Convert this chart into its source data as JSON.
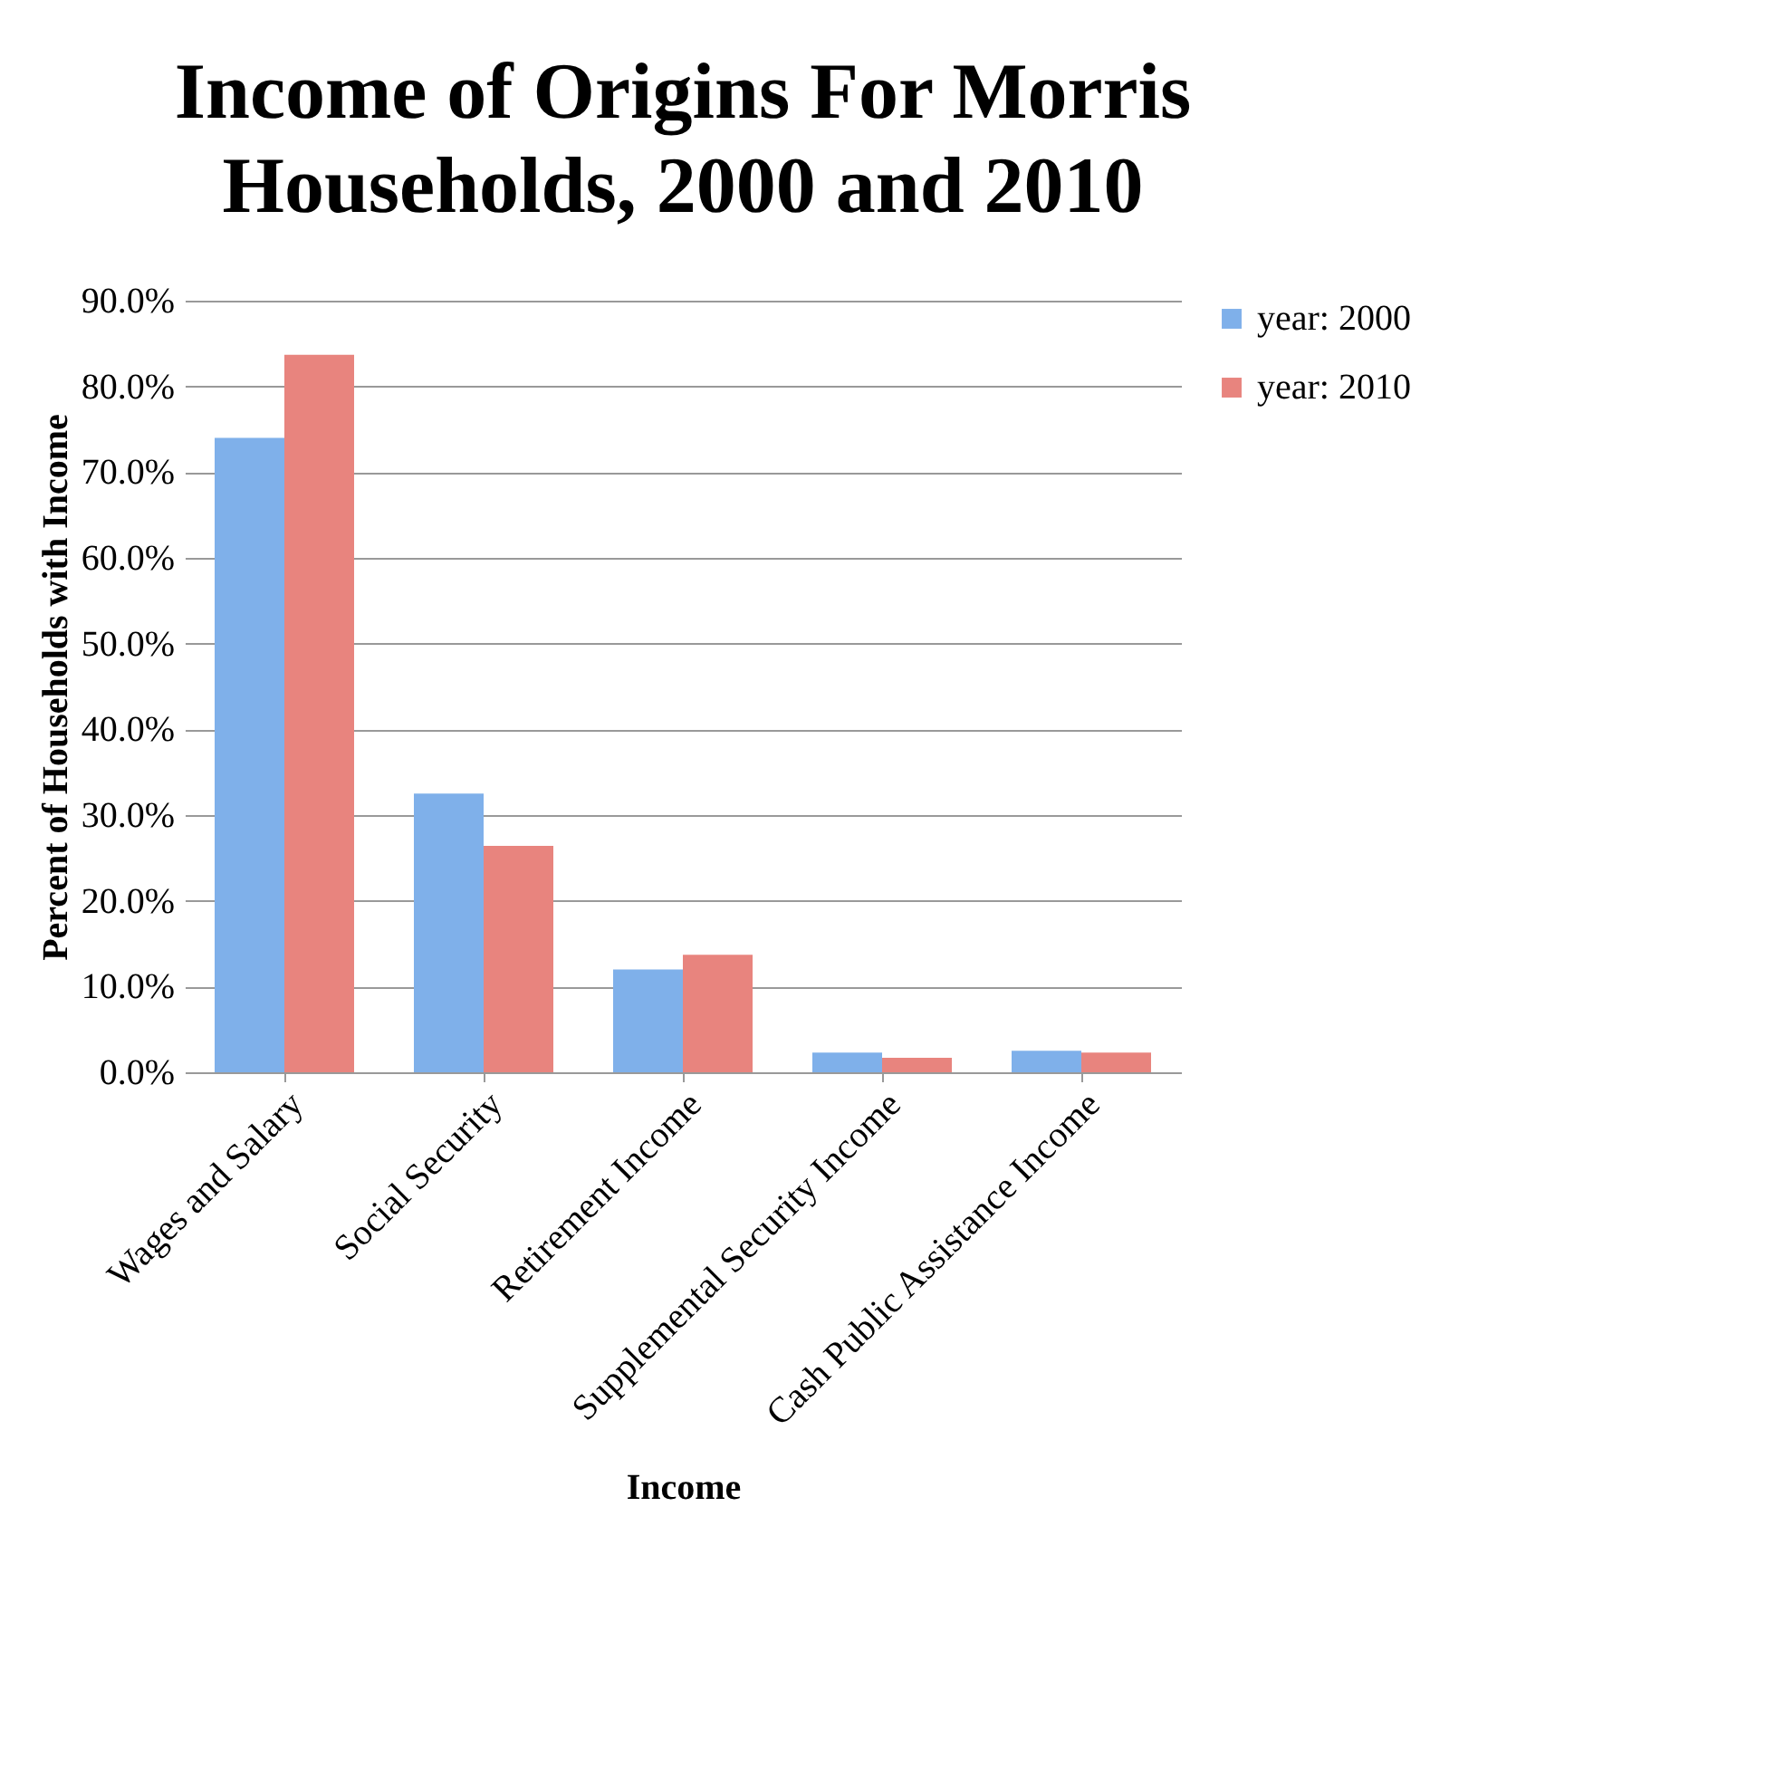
{
  "chart_data": {
    "type": "bar",
    "title": "Income of Origins For Morris Households, 2000 and 2010",
    "xlabel": "Income",
    "ylabel": "Percent of Households with Income",
    "categories": [
      "Wages and Salary",
      "Social Security",
      "Retirement Income",
      "Supplemental Security Income",
      "Cash Public Assistance Income"
    ],
    "series": [
      {
        "name": "year: 2000",
        "color": "#7fb0ea",
        "values": [
          74.0,
          32.5,
          12.0,
          2.3,
          2.5
        ]
      },
      {
        "name": "year: 2010",
        "color": "#e8847e",
        "values": [
          83.7,
          26.4,
          13.7,
          1.7,
          2.3
        ]
      }
    ],
    "ylim": [
      0,
      90
    ],
    "yticks": [
      {
        "value": 0,
        "label": "0.0%"
      },
      {
        "value": 10,
        "label": "10.0%"
      },
      {
        "value": 20,
        "label": "20.0%"
      },
      {
        "value": 30,
        "label": "30.0%"
      },
      {
        "value": 40,
        "label": "40.0%"
      },
      {
        "value": 50,
        "label": "50.0%"
      },
      {
        "value": 60,
        "label": "60.0%"
      },
      {
        "value": 70,
        "label": "70.0%"
      },
      {
        "value": 80,
        "label": "80.0%"
      },
      {
        "value": 90,
        "label": "90.0%"
      }
    ],
    "grid": "y",
    "legend": "right"
  }
}
